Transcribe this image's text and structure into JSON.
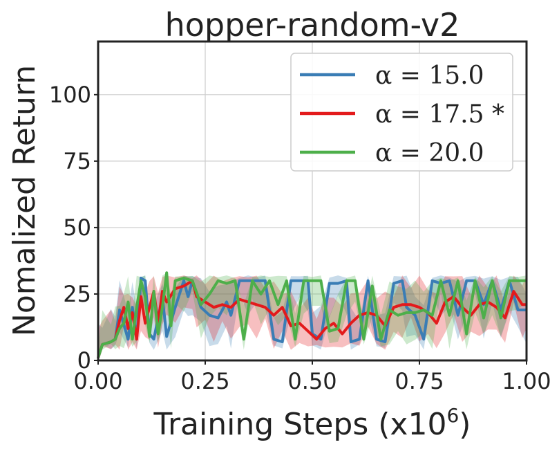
{
  "chart_data": {
    "type": "line",
    "title": "hopper-random-v2",
    "xlabel": "Training Steps (x10",
    "xlabel_exp": "6",
    "xlabel_close": ")",
    "ylabel": "Nomalized Return",
    "xlim": [
      0.0,
      1.0
    ],
    "ylim": [
      0,
      120
    ],
    "xticks": [
      0.0,
      0.25,
      0.5,
      0.75,
      1.0
    ],
    "xtick_labels": [
      "0.00",
      "0.25",
      "0.50",
      "0.75",
      "1.00"
    ],
    "yticks": [
      0,
      25,
      50,
      75,
      100
    ],
    "ytick_labels": [
      "0",
      "25",
      "50",
      "75",
      "100"
    ],
    "grid": true,
    "legend_position": "top-right",
    "band": {
      "lower": 7,
      "upper": 31
    },
    "series": [
      {
        "name": "α = 15.0",
        "color": "#3a7db5",
        "x": [
          0.0,
          0.01,
          0.03,
          0.04,
          0.05,
          0.07,
          0.08,
          0.09,
          0.1,
          0.11,
          0.12,
          0.13,
          0.15,
          0.16,
          0.18,
          0.2,
          0.21,
          0.22,
          0.24,
          0.26,
          0.28,
          0.3,
          0.31,
          0.33,
          0.35,
          0.37,
          0.39,
          0.41,
          0.43,
          0.45,
          0.47,
          0.49,
          0.5,
          0.52,
          0.54,
          0.56,
          0.58,
          0.59,
          0.61,
          0.63,
          0.65,
          0.67,
          0.69,
          0.71,
          0.72,
          0.74,
          0.76,
          0.78,
          0.8,
          0.82,
          0.84,
          0.86,
          0.88,
          0.9,
          0.92,
          0.94,
          0.96,
          0.98,
          1.0
        ],
        "y": [
          1,
          6,
          7,
          8,
          19,
          8,
          20,
          8,
          31,
          30,
          10,
          8,
          24,
          9,
          20,
          30,
          24,
          30,
          20,
          17,
          16,
          22,
          17,
          30,
          30,
          30,
          30,
          8,
          7,
          30,
          30,
          30,
          10,
          8,
          29,
          29,
          30,
          7,
          8,
          30,
          8,
          7,
          29,
          30,
          20,
          17,
          8,
          30,
          29,
          30,
          17,
          30,
          30,
          21,
          30,
          19,
          30,
          19,
          19
        ]
      },
      {
        "name": "α = 17.5 *",
        "color": "#e31a1c",
        "x": [
          0.0,
          0.01,
          0.03,
          0.04,
          0.05,
          0.06,
          0.07,
          0.08,
          0.09,
          0.1,
          0.11,
          0.12,
          0.13,
          0.14,
          0.15,
          0.16,
          0.18,
          0.2,
          0.22,
          0.23,
          0.25,
          0.27,
          0.29,
          0.31,
          0.33,
          0.35,
          0.37,
          0.39,
          0.41,
          0.43,
          0.45,
          0.47,
          0.49,
          0.51,
          0.53,
          0.55,
          0.57,
          0.59,
          0.61,
          0.63,
          0.65,
          0.67,
          0.69,
          0.71,
          0.73,
          0.75,
          0.77,
          0.79,
          0.81,
          0.83,
          0.85,
          0.87,
          0.89,
          0.91,
          0.93,
          0.95,
          0.97,
          0.99,
          1.0
        ],
        "y": [
          1,
          6,
          7,
          8,
          15,
          20,
          12,
          18,
          8,
          24,
          14,
          20,
          26,
          14,
          26,
          22,
          27,
          28,
          30,
          24,
          22,
          20,
          21,
          20,
          23,
          22,
          21,
          20,
          17,
          20,
          13,
          14,
          11,
          8,
          12,
          14,
          10,
          14,
          17,
          18,
          17,
          13,
          20,
          21,
          21,
          20,
          18,
          14,
          22,
          24,
          20,
          17,
          21,
          22,
          20,
          16,
          26,
          21,
          21
        ]
      },
      {
        "name": "α = 20.0",
        "color": "#4daf4a",
        "x": [
          0.0,
          0.01,
          0.03,
          0.04,
          0.05,
          0.06,
          0.07,
          0.08,
          0.09,
          0.1,
          0.11,
          0.12,
          0.13,
          0.14,
          0.15,
          0.16,
          0.17,
          0.18,
          0.2,
          0.22,
          0.24,
          0.26,
          0.28,
          0.3,
          0.32,
          0.34,
          0.36,
          0.38,
          0.4,
          0.42,
          0.44,
          0.46,
          0.48,
          0.5,
          0.52,
          0.54,
          0.56,
          0.58,
          0.6,
          0.62,
          0.64,
          0.66,
          0.68,
          0.7,
          0.72,
          0.74,
          0.76,
          0.78,
          0.8,
          0.82,
          0.84,
          0.86,
          0.88,
          0.9,
          0.92,
          0.94,
          0.96,
          0.98,
          1.0
        ],
        "y": [
          1,
          6,
          7,
          8,
          12,
          14,
          22,
          8,
          20,
          30,
          24,
          9,
          26,
          10,
          20,
          33,
          13,
          30,
          31,
          30,
          21,
          25,
          30,
          29,
          30,
          8,
          30,
          25,
          30,
          21,
          30,
          8,
          30,
          30,
          30,
          11,
          12,
          30,
          30,
          8,
          28,
          8,
          19,
          17,
          18,
          18,
          19,
          17,
          30,
          17,
          30,
          10,
          30,
          16,
          30,
          16,
          30,
          30,
          30
        ]
      }
    ]
  }
}
